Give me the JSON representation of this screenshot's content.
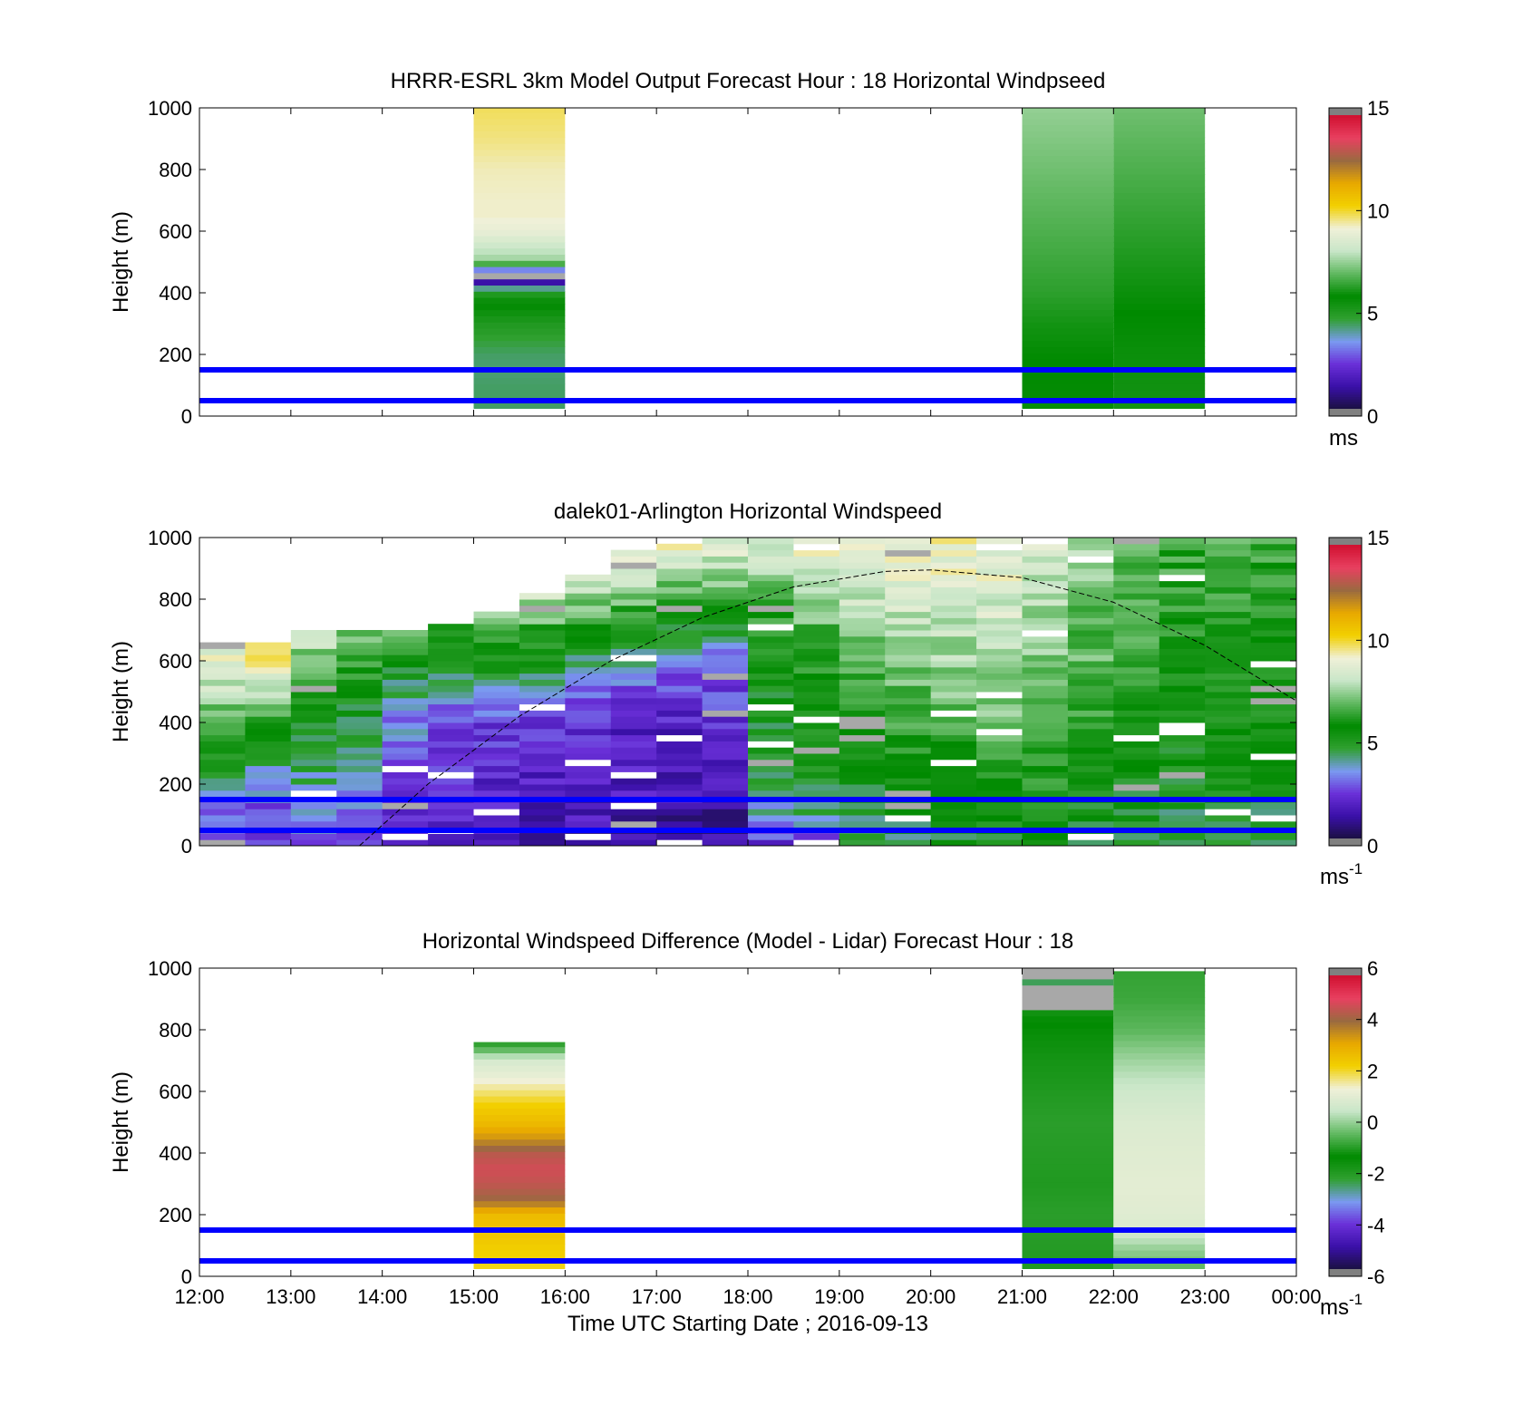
{
  "figure": {
    "xlabel": "Time UTC  Starting Date ; 2016-09-13",
    "time_ticks": [
      "12:00",
      "13:00",
      "14:00",
      "15:00",
      "16:00",
      "17:00",
      "18:00",
      "19:00",
      "20:00",
      "21:00",
      "22:00",
      "23:00",
      "00:00"
    ]
  },
  "colors": {
    "reference_lines": "#0000ff",
    "colormap": [
      "#1a1040",
      "#3a10a8",
      "#6a30d8",
      "#7a9af0",
      "#30a030",
      "#008a00",
      "#60b860",
      "#c8e6c8",
      "#f0f0d8",
      "#f2d000",
      "#e8a800",
      "#9a6a40",
      "#e84060",
      "#d01030"
    ]
  },
  "chart_data": [
    {
      "type": "heatmap",
      "title": "HRRR-ESRL 3km Model Output   Forecast Hour : 18 Horizontal Windpseed",
      "xlabel": "",
      "ylabel": "Height (m)",
      "xlim": [
        "12:00",
        "00:00"
      ],
      "ylim": [
        0,
        1000
      ],
      "yticks": [
        "0",
        "200",
        "400",
        "600",
        "800",
        "1000"
      ],
      "colorbar": {
        "range": [
          0,
          15
        ],
        "ticks": [
          "0",
          "5",
          "10",
          "15"
        ],
        "unit": "ms"
      },
      "reference_lines_m": [
        50,
        150
      ],
      "columns": [
        {
          "start": "15:00",
          "end": "16:00",
          "profile": [
            [
              25,
              4.3
            ],
            [
              50,
              4.3
            ],
            [
              100,
              4.3
            ],
            [
              150,
              4.2
            ],
            [
              200,
              4.3
            ],
            [
              250,
              4.6
            ],
            [
              300,
              5.0
            ],
            [
              350,
              5.6
            ],
            [
              400,
              6.2
            ],
            [
              450,
              -1
            ],
            [
              500,
              7.5
            ],
            [
              550,
              8.2
            ],
            [
              600,
              9.0
            ],
            [
              650,
              9.3
            ],
            [
              700,
              9.3
            ],
            [
              800,
              9.4
            ],
            [
              900,
              9.7
            ],
            [
              1000,
              9.9
            ]
          ]
        },
        {
          "start": "21:00",
          "end": "22:00",
          "profile": [
            [
              25,
              5.6
            ],
            [
              100,
              5.7
            ],
            [
              200,
              5.8
            ],
            [
              300,
              6.0
            ],
            [
              400,
              6.3
            ],
            [
              500,
              6.5
            ],
            [
              600,
              6.7
            ],
            [
              700,
              6.9
            ],
            [
              800,
              7.1
            ],
            [
              900,
              7.3
            ],
            [
              1000,
              7.5
            ]
          ]
        },
        {
          "start": "22:00",
          "end": "23:00",
          "profile": [
            [
              25,
              5.3
            ],
            [
              100,
              5.4
            ],
            [
              200,
              5.5
            ],
            [
              300,
              5.7
            ],
            [
              400,
              5.9
            ],
            [
              500,
              6.1
            ],
            [
              600,
              6.3
            ],
            [
              700,
              6.5
            ],
            [
              800,
              6.7
            ],
            [
              900,
              6.9
            ],
            [
              1000,
              7.1
            ]
          ]
        }
      ]
    },
    {
      "type": "heatmap",
      "title": "dalek01-Arlington  Horizontal Windspeed",
      "xlabel": "",
      "ylabel": "Height (m)",
      "xlim": [
        "12:00",
        "00:00"
      ],
      "ylim": [
        0,
        1000
      ],
      "yticks": [
        "0",
        "200",
        "400",
        "600",
        "800",
        "1000"
      ],
      "colorbar": {
        "range": [
          0,
          15
        ],
        "ticks": [
          "0",
          "5",
          "10",
          "15"
        ],
        "unit": "ms",
        "unit_exponent": "-1"
      },
      "reference_lines_m": [
        50,
        150
      ],
      "boundary_layer_curve": {
        "style": "dashed",
        "points": [
          [
            "13:45",
            0
          ],
          [
            "14:30",
            200
          ],
          [
            "15:30",
            420
          ],
          [
            "16:30",
            600
          ],
          [
            "17:30",
            740
          ],
          [
            "18:30",
            840
          ],
          [
            "19:30",
            890
          ],
          [
            "20:00",
            895
          ],
          [
            "21:00",
            870
          ],
          [
            "22:00",
            790
          ],
          [
            "23:00",
            650
          ],
          [
            "00:00",
            470
          ]
        ]
      },
      "time_bins": [
        "12:00",
        "12:30",
        "13:00",
        "13:30",
        "14:00",
        "14:30",
        "15:00",
        "15:30",
        "16:00",
        "16:30",
        "17:00",
        "17:30",
        "18:00",
        "18:30",
        "19:00",
        "19:30",
        "20:00",
        "20:30",
        "21:00",
        "21:30",
        "22:00",
        "22:30",
        "23:00",
        "23:30"
      ],
      "bin_top_m": [
        650,
        660,
        690,
        700,
        700,
        720,
        760,
        820,
        880,
        950,
        980,
        990,
        1000,
        1000,
        1000,
        1000,
        1000,
        1000,
        1000,
        1000,
        1000,
        1000,
        1000,
        1000
      ],
      "ctrl_heights_m": [
        0,
        100,
        200,
        300,
        400,
        500,
        600,
        700,
        800,
        900,
        1000
      ],
      "ctrl_speeds": [
        [
          2.5,
          3.0,
          4.0,
          5.0,
          6.5,
          8.0,
          9.0,
          null,
          null,
          null,
          null
        ],
        [
          2.0,
          2.5,
          3.5,
          4.5,
          6.0,
          8.0,
          9.5,
          10.5,
          null,
          null,
          null
        ],
        [
          3.0,
          3.5,
          4.0,
          4.5,
          5.0,
          6.0,
          7.0,
          8.5,
          9.0,
          null,
          null
        ],
        [
          2.5,
          3.0,
          3.5,
          4.0,
          4.5,
          5.5,
          6.5,
          7.5,
          9.0,
          null,
          null
        ],
        [
          2.0,
          2.0,
          2.5,
          3.0,
          3.2,
          4.0,
          5.5,
          7.0,
          9.0,
          null,
          null
        ],
        [
          1.5,
          1.8,
          2.0,
          2.2,
          2.5,
          3.5,
          5.0,
          6.5,
          8.5,
          9.5,
          null
        ],
        [
          1.5,
          1.7,
          1.9,
          2.0,
          2.5,
          4.0,
          5.5,
          7.0,
          8.5,
          9.5,
          10.0
        ],
        [
          1.4,
          1.6,
          1.8,
          1.9,
          2.2,
          3.5,
          5.0,
          6.5,
          8.0,
          9.0,
          9.8
        ],
        [
          1.3,
          1.5,
          1.7,
          1.8,
          2.0,
          3.0,
          4.5,
          6.0,
          7.5,
          9.0,
          9.8
        ],
        [
          1.2,
          1.4,
          1.6,
          1.7,
          1.9,
          2.5,
          4.0,
          5.5,
          7.0,
          8.5,
          9.5
        ],
        [
          1.0,
          1.2,
          1.4,
          1.5,
          1.8,
          2.2,
          3.5,
          5.0,
          6.5,
          8.0,
          9.2
        ],
        [
          1.0,
          1.2,
          1.3,
          1.5,
          2.0,
          2.5,
          3.0,
          4.5,
          6.0,
          8.0,
          9.0
        ],
        [
          2.0,
          3.5,
          4.5,
          4.8,
          5.0,
          5.0,
          5.5,
          6.0,
          6.8,
          8.0,
          9.0
        ],
        [
          2.5,
          4.0,
          5.0,
          5.2,
          5.5,
          5.8,
          6.2,
          6.8,
          7.5,
          8.5,
          9.0
        ],
        [
          4.0,
          4.5,
          5.0,
          5.5,
          6.0,
          6.5,
          7.0,
          7.5,
          8.0,
          8.5,
          9.0
        ],
        [
          4.5,
          5.0,
          5.5,
          6.0,
          6.5,
          7.0,
          7.5,
          8.0,
          8.5,
          9.0,
          9.2
        ],
        [
          4.8,
          5.3,
          5.8,
          6.2,
          6.8,
          7.2,
          7.6,
          8.0,
          8.5,
          9.0,
          9.2
        ],
        [
          5.0,
          5.5,
          6.0,
          6.5,
          7.0,
          7.4,
          7.8,
          8.2,
          8.5,
          8.8,
          9.0
        ],
        [
          5.0,
          5.5,
          6.0,
          6.3,
          6.8,
          7.0,
          7.3,
          7.6,
          7.9,
          8.2,
          8.5
        ],
        [
          4.5,
          5.0,
          5.5,
          5.8,
          6.2,
          6.5,
          6.8,
          7.0,
          7.2,
          7.4,
          7.6
        ],
        [
          4.3,
          4.8,
          5.2,
          5.5,
          5.8,
          6.0,
          6.2,
          6.4,
          6.6,
          6.8,
          7.0
        ],
        [
          4.2,
          4.6,
          5.0,
          5.2,
          5.4,
          5.6,
          5.8,
          6.0,
          6.2,
          6.4,
          6.6
        ],
        [
          4.3,
          4.7,
          5.0,
          5.2,
          5.4,
          5.6,
          5.8,
          6.0,
          6.2,
          6.4,
          6.6
        ],
        [
          4.3,
          4.6,
          4.9,
          5.1,
          5.3,
          5.5,
          5.7,
          5.9,
          6.1,
          6.3,
          6.5
        ]
      ]
    },
    {
      "type": "heatmap",
      "title": "Horizontal Windspeed Difference (Model - Lidar) Forecast Hour : 18",
      "xlabel": "Time UTC  Starting Date ; 2016-09-13",
      "ylabel": "Height (m)",
      "xlim": [
        "12:00",
        "00:00"
      ],
      "ylim": [
        0,
        1000
      ],
      "yticks": [
        "0",
        "200",
        "400",
        "600",
        "800",
        "1000"
      ],
      "colorbar": {
        "range": [
          -6,
          6
        ],
        "ticks": [
          "-6",
          "-4",
          "-2",
          "0",
          "2",
          "4",
          "6"
        ],
        "unit": "ms",
        "unit_exponent": "-1"
      },
      "reference_lines_m": [
        50,
        150
      ],
      "columns": [
        {
          "start": "15:00",
          "end": "16:00",
          "top": 760,
          "profile": [
            [
              25,
              2.2
            ],
            [
              100,
              2.4
            ],
            [
              200,
              2.8
            ],
            [
              250,
              4.2
            ],
            [
              300,
              4.6
            ],
            [
              350,
              4.8
            ],
            [
              400,
              4.5
            ],
            [
              450,
              3.5
            ],
            [
              500,
              2.8
            ],
            [
              550,
              2.4
            ],
            [
              600,
              1.8
            ],
            [
              650,
              1.2
            ],
            [
              700,
              0.8
            ],
            [
              740,
              -0.6
            ],
            [
              760,
              -1.0
            ]
          ]
        },
        {
          "start": "21:00",
          "end": "22:00",
          "top": 1000,
          "profile": [
            [
              25,
              -2.0
            ],
            [
              100,
              -2.1
            ],
            [
              200,
              -2.2
            ],
            [
              300,
              -2.0
            ],
            [
              400,
              -2.1
            ],
            [
              500,
              -2.2
            ],
            [
              600,
              -2.0
            ],
            [
              700,
              -1.8
            ],
            [
              800,
              -1.5
            ],
            [
              860,
              -1.2
            ],
            [
              880,
              -10
            ],
            [
              950,
              -1.0
            ],
            [
              980,
              -10
            ],
            [
              1000,
              -10
            ]
          ]
        },
        {
          "start": "22:00",
          "end": "23:00",
          "top": 990,
          "profile": [
            [
              25,
              -0.5
            ],
            [
              100,
              0.1
            ],
            [
              150,
              0.8
            ],
            [
              200,
              1.0
            ],
            [
              300,
              1.1
            ],
            [
              400,
              1.0
            ],
            [
              500,
              0.9
            ],
            [
              600,
              0.6
            ],
            [
              700,
              0.1
            ],
            [
              800,
              -0.5
            ],
            [
              900,
              -0.8
            ],
            [
              1000,
              -0.9
            ]
          ]
        }
      ]
    }
  ]
}
